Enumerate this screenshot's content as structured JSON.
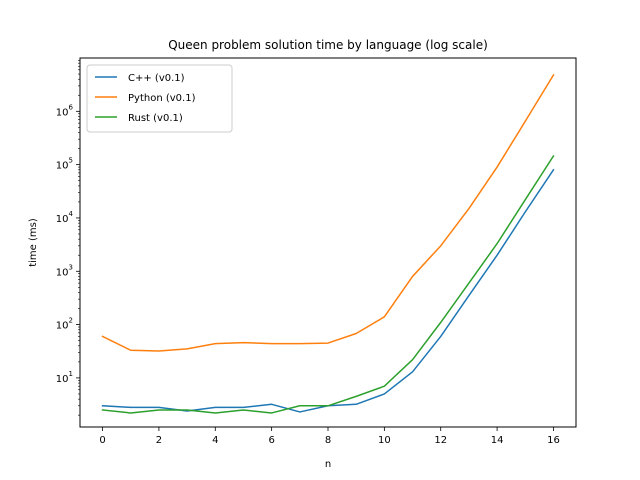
{
  "chart_data": {
    "type": "line",
    "title": "Queen problem solution time by language (log scale)",
    "xlabel": "n",
    "ylabel": "time (ms)",
    "yscale": "log",
    "xlim": [
      -0.8,
      16.8
    ],
    "ylim": [
      1.2,
      10000000
    ],
    "x_ticks": [
      0,
      2,
      4,
      6,
      8,
      10,
      12,
      14,
      16
    ],
    "y_ticks": [
      {
        "value": 10,
        "base": "10",
        "exp": "1"
      },
      {
        "value": 100,
        "base": "10",
        "exp": "2"
      },
      {
        "value": 1000,
        "base": "10",
        "exp": "3"
      },
      {
        "value": 10000,
        "base": "10",
        "exp": "4"
      },
      {
        "value": 100000,
        "base": "10",
        "exp": "5"
      },
      {
        "value": 1000000,
        "base": "10",
        "exp": "6"
      }
    ],
    "grid": false,
    "legend_position": "top-left",
    "x": [
      0,
      1,
      2,
      3,
      4,
      5,
      6,
      7,
      8,
      9,
      10,
      11,
      12,
      13,
      14,
      15,
      16
    ],
    "series": [
      {
        "name": "C++ (v0.1)",
        "color": "#1f77b4",
        "values": [
          3.0,
          2.8,
          2.8,
          2.4,
          2.8,
          2.8,
          3.2,
          2.3,
          3.0,
          3.2,
          5.0,
          13,
          60,
          350,
          2000,
          13000,
          80000
        ]
      },
      {
        "name": "Python (v0.1)",
        "color": "#ff7f0e",
        "values": [
          60,
          33,
          32,
          35,
          44,
          46,
          44,
          44,
          45,
          68,
          140,
          800,
          3000,
          15000,
          90000,
          650000,
          4800000
        ]
      },
      {
        "name": "Rust (v0.1)",
        "color": "#2ca02c",
        "values": [
          2.5,
          2.2,
          2.5,
          2.5,
          2.2,
          2.5,
          2.2,
          3.0,
          3.0,
          4.5,
          7.0,
          22,
          110,
          600,
          3300,
          22000,
          145000
        ]
      }
    ]
  }
}
